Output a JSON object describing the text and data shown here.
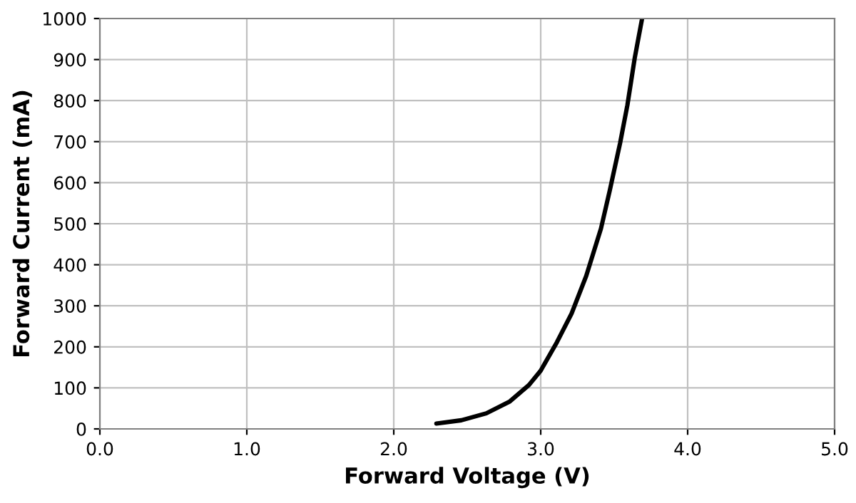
{
  "chart_data": {
    "type": "line",
    "xlabel": "Forward Voltage (V)",
    "ylabel": "Forward Current (mA)",
    "series": [
      {
        "color": "#000000",
        "x": [
          2.29,
          2.46,
          2.63,
          2.79,
          2.92,
          3.0,
          3.11,
          3.21,
          3.31,
          3.41,
          3.47,
          3.54,
          3.59,
          3.64,
          3.69
        ],
        "values": [
          13,
          21,
          38,
          67,
          107,
          142,
          211,
          281,
          373,
          488,
          581,
          696,
          789,
          904,
          1000
        ]
      }
    ],
    "xlim": [
      0,
      5
    ],
    "ylim": [
      0,
      1000
    ],
    "xticks": [
      {
        "value": 0,
        "label": "0.0"
      },
      {
        "value": 1,
        "label": "1.0"
      },
      {
        "value": 2,
        "label": "2.0"
      },
      {
        "value": 3,
        "label": "3.0"
      },
      {
        "value": 4,
        "label": "4.0"
      },
      {
        "value": 5,
        "label": "5.0"
      }
    ],
    "yticks": [
      0,
      100,
      200,
      300,
      400,
      500,
      600,
      700,
      800,
      900,
      1000
    ],
    "grid": true,
    "marker": "none",
    "line_style": "solid"
  }
}
